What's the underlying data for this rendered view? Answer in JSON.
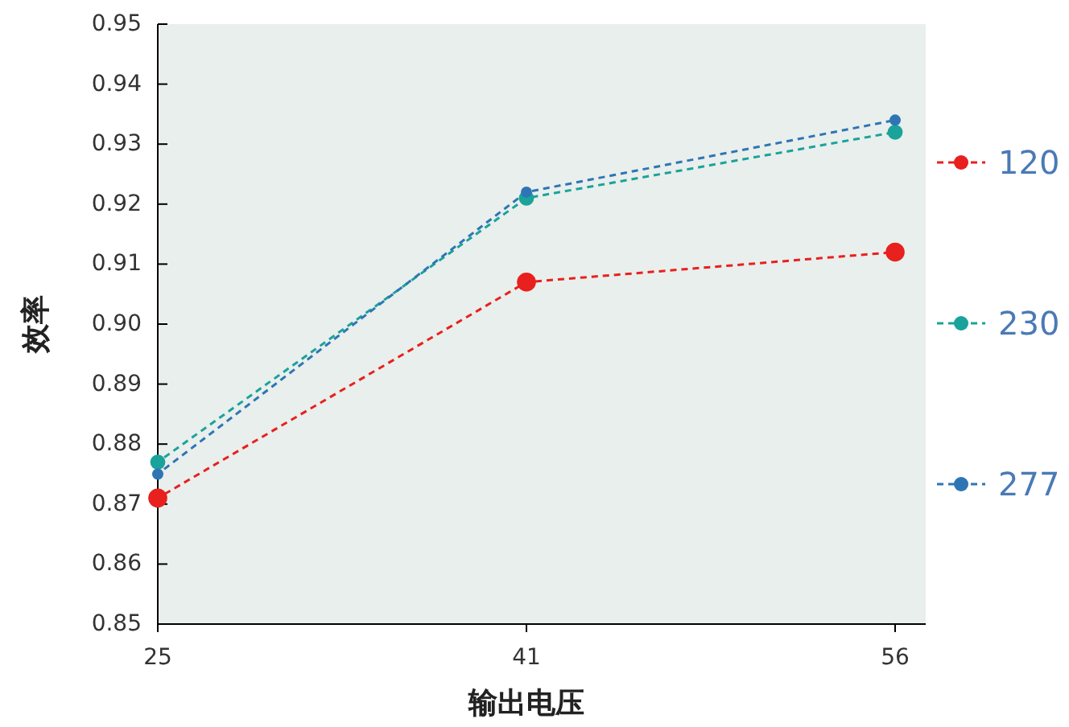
{
  "chart_data": {
    "type": "line",
    "xlabel": "输出电压",
    "ylabel": "效率",
    "categories": [
      "25",
      "41",
      "56"
    ],
    "series": [
      {
        "name": "120",
        "color": "#e8201e",
        "values": [
          0.871,
          0.907,
          0.912
        ]
      },
      {
        "name": "230",
        "color": "#1aa39a",
        "values": [
          0.877,
          0.921,
          0.932
        ]
      },
      {
        "name": "277",
        "color": "#2e75b6",
        "values": [
          0.875,
          0.922,
          0.934
        ]
      }
    ],
    "ylim": [
      0.85,
      0.95
    ],
    "yticks": [
      0.85,
      0.86,
      0.87,
      0.88,
      0.89,
      {
        "value": 0.9,
        "label": "0.90"
      },
      0.91,
      0.92,
      0.93,
      0.94,
      0.95
    ],
    "legend": "right",
    "marker": "circle",
    "line_style": "dashed"
  }
}
